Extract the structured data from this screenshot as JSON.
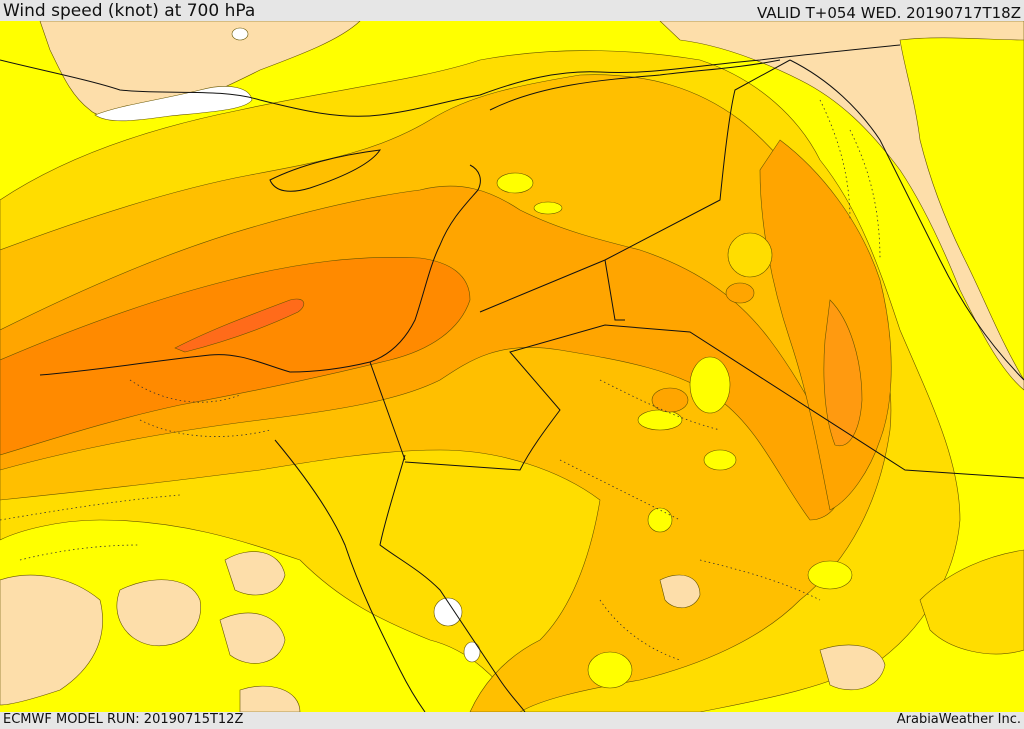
{
  "header": {
    "title": "Wind speed (knot) at 700 hPa",
    "valid_time": "VALID T+054 WED. 20190717T18Z"
  },
  "footer": {
    "model_run": "ECMWF MODEL RUN: 20190715T12Z",
    "credit": "ArabiaWeather Inc."
  },
  "map": {
    "field": "wind speed",
    "level": "700 hPa",
    "units": "knot",
    "colors": {
      "land_beige": "#fddeaa",
      "yellow": "#ffff00",
      "light_orange": "#ffdd00",
      "orange_1": "#ffbf00",
      "orange_2": "#ffa500",
      "orange_3": "#ff8a00",
      "orange_4": "#ff6b1a",
      "white_low": "#ffffff",
      "border": "#111111"
    }
  }
}
